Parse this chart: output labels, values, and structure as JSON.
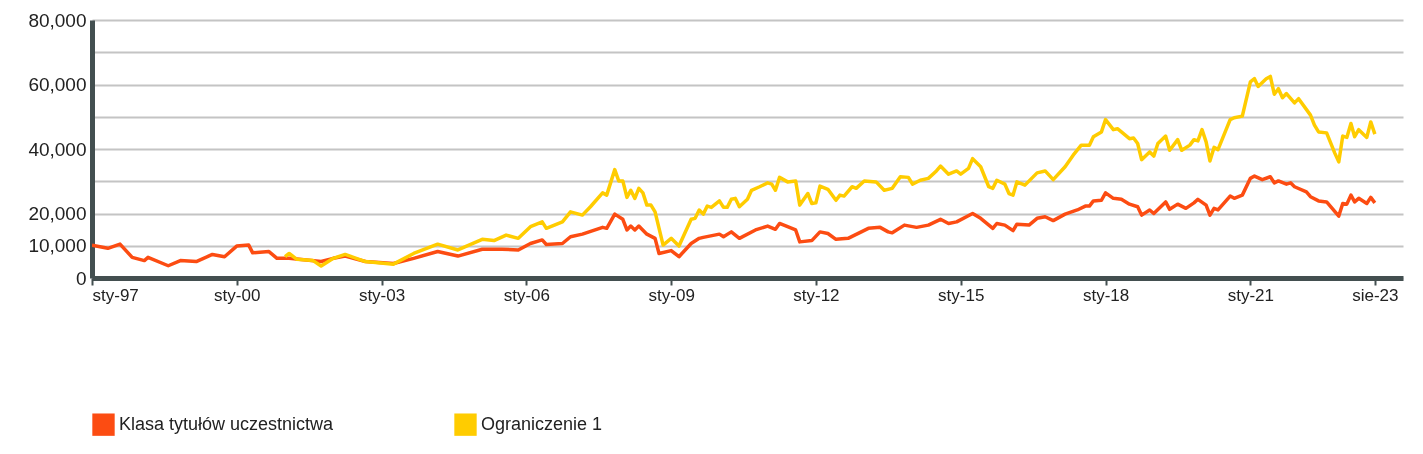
{
  "chart_data": {
    "type": "line",
    "xlim": [
      "1997-01",
      "2024-03"
    ],
    "xticks": [
      {
        "value": "1997-01",
        "label": "sty-97"
      },
      {
        "value": "2000-01",
        "label": "sty-00"
      },
      {
        "value": "2003-01",
        "label": "sty-03"
      },
      {
        "value": "2006-01",
        "label": "sty-06"
      },
      {
        "value": "2009-01",
        "label": "sty-09"
      },
      {
        "value": "2012-01",
        "label": "sty-12"
      },
      {
        "value": "2015-01",
        "label": "sty-15"
      },
      {
        "value": "2018-01",
        "label": "sty-18"
      },
      {
        "value": "2021-01",
        "label": "sty-21"
      },
      {
        "value": "2023-08",
        "label": "sie-23"
      }
    ],
    "ylim": [
      0,
      80000
    ],
    "yticks": [
      {
        "value": 0,
        "label": "0"
      },
      {
        "value": 10000,
        "label": "10,000"
      },
      {
        "value": 20000,
        "label": "20,000"
      },
      {
        "value": 30000,
        "label": null
      },
      {
        "value": 40000,
        "label": "40,000"
      },
      {
        "value": 50000,
        "label": null
      },
      {
        "value": 60000,
        "label": "60,000"
      },
      {
        "value": 70000,
        "label": null
      },
      {
        "value": 80000,
        "label": "80,000"
      }
    ],
    "grid": "y",
    "legend": "bottom",
    "series": [
      {
        "name": "Klasa tytułów uczestnictwa",
        "color": "#fc4c12",
        "x": [
          "1997-01",
          "1997-05",
          "1997-08",
          "1997-11",
          "1998-02",
          "1998-03",
          "1998-08",
          "1998-11",
          "1999-03",
          "1999-07",
          "1999-10",
          "2000-01",
          "2000-04",
          "2000-05",
          "2000-09",
          "2000-11",
          "2001-02",
          "2001-10",
          "2002-01",
          "2002-04",
          "2002-09",
          "2003-04",
          "2003-09",
          "2004-03",
          "2004-08",
          "2005-02",
          "2005-07",
          "2005-11",
          "2006-02",
          "2006-05",
          "2006-06",
          "2006-10",
          "2006-12",
          "2007-03",
          "2007-08",
          "2007-09",
          "2007-11",
          "2008-01",
          "2008-02",
          "2008-03",
          "2008-04",
          "2008-05",
          "2008-07",
          "2008-09",
          "2008-10",
          "2009-01",
          "2009-03",
          "2009-06",
          "2009-08",
          "2009-09",
          "2010-01",
          "2010-02",
          "2010-04",
          "2010-06",
          "2010-10",
          "2011-01",
          "2011-03",
          "2011-04",
          "2011-08",
          "2011-09",
          "2011-12",
          "2012-02",
          "2012-04",
          "2012-06",
          "2012-09",
          "2013-02",
          "2013-05",
          "2013-07",
          "2013-08",
          "2013-11",
          "2014-02",
          "2014-05",
          "2014-08",
          "2014-10",
          "2014-12",
          "2015-04",
          "2015-06",
          "2015-09",
          "2015-10",
          "2015-12",
          "2016-02",
          "2016-03",
          "2016-06",
          "2016-08",
          "2016-10",
          "2016-12",
          "2017-03",
          "2017-06",
          "2017-08",
          "2017-09",
          "2017-10",
          "2017-12",
          "2018-01",
          "2018-03",
          "2018-05",
          "2018-07",
          "2018-09",
          "2018-10",
          "2018-12",
          "2019-01",
          "2019-04",
          "2019-05",
          "2019-07",
          "2019-09",
          "2019-11",
          "2019-12",
          "2020-02",
          "2020-03",
          "2020-04",
          "2020-05",
          "2020-08",
          "2020-09",
          "2020-11",
          "2021-01",
          "2021-02",
          "2021-04",
          "2021-06",
          "2021-07",
          "2021-08",
          "2021-10",
          "2021-11",
          "2021-12",
          "2022-03",
          "2022-04",
          "2022-06",
          "2022-08",
          "2022-11",
          "2022-12",
          "2023-01",
          "2023-02",
          "2023-03",
          "2023-04",
          "2023-06",
          "2023-07",
          "2023-08"
        ],
        "values": [
          10200,
          9200,
          10500,
          6400,
          5400,
          6400,
          3800,
          5400,
          5100,
          7300,
          6600,
          9900,
          10200,
          7800,
          8200,
          6100,
          6100,
          5100,
          6100,
          6800,
          5100,
          4500,
          6100,
          8200,
          6800,
          8900,
          8900,
          8700,
          10700,
          11800,
          10400,
          10700,
          12800,
          13600,
          15700,
          15400,
          19800,
          18200,
          14900,
          16100,
          14900,
          16100,
          13600,
          12300,
          7600,
          8500,
          6600,
          10700,
          12300,
          12600,
          13600,
          12800,
          14300,
          12300,
          14900,
          16100,
          15100,
          16900,
          14900,
          11200,
          11600,
          14300,
          13800,
          12000,
          12300,
          15400,
          15700,
          14300,
          14000,
          16400,
          15700,
          16400,
          18200,
          16900,
          17400,
          20000,
          18500,
          15400,
          16900,
          16400,
          14700,
          16700,
          16400,
          18500,
          19000,
          17800,
          19800,
          21100,
          22300,
          22300,
          23900,
          24100,
          26400,
          24700,
          24400,
          22900,
          22100,
          19500,
          21100,
          20000,
          23600,
          21300,
          22900,
          21600,
          23300,
          24400,
          22600,
          19500,
          21600,
          21100,
          25400,
          24700,
          25700,
          30900,
          31600,
          30500,
          31400,
          29500,
          30100,
          29100,
          29500,
          28300,
          26700,
          25200,
          23900,
          23600,
          19200,
          23100,
          22900,
          25700,
          23600,
          24700,
          23100,
          25000,
          23300
        ]
      },
      {
        "name": "Ograniczenie 1",
        "color": "#ffcc00",
        "x": [
          "2001-01",
          "2001-02",
          "2001-04",
          "2001-08",
          "2001-10",
          "2002-01",
          "2002-04",
          "2002-09",
          "2003-04",
          "2003-09",
          "2004-03",
          "2004-08",
          "2005-02",
          "2005-05",
          "2005-08",
          "2005-11",
          "2006-02",
          "2006-05",
          "2006-06",
          "2006-10",
          "2006-12",
          "2007-03",
          "2007-05",
          "2007-08",
          "2007-09",
          "2007-11",
          "2007-12",
          "2008-01",
          "2008-02",
          "2008-03",
          "2008-04",
          "2008-05",
          "2008-06",
          "2008-07",
          "2008-08",
          "2008-09",
          "2008-11",
          "2009-01",
          "2009-03",
          "2009-06",
          "2009-07",
          "2009-08",
          "2009-09",
          "2009-10",
          "2009-11",
          "2010-01",
          "2010-02",
          "2010-03",
          "2010-04",
          "2010-05",
          "2010-06",
          "2010-08",
          "2010-09",
          "2010-11",
          "2011-01",
          "2011-02",
          "2011-03",
          "2011-04",
          "2011-06",
          "2011-08",
          "2011-09",
          "2011-11",
          "2011-12",
          "2012-01",
          "2012-02",
          "2012-04",
          "2012-06",
          "2012-07",
          "2012-08",
          "2012-10",
          "2012-11",
          "2013-01",
          "2013-04",
          "2013-06",
          "2013-08",
          "2013-10",
          "2013-12",
          "2014-01",
          "2014-03",
          "2014-05",
          "2014-07",
          "2014-08",
          "2014-10",
          "2014-12",
          "2015-01",
          "2015-03",
          "2015-04",
          "2015-06",
          "2015-08",
          "2015-09",
          "2015-10",
          "2015-12",
          "2016-01",
          "2016-02",
          "2016-03",
          "2016-05",
          "2016-08",
          "2016-10",
          "2016-12",
          "2017-03",
          "2017-05",
          "2017-07",
          "2017-09",
          "2017-10",
          "2017-12",
          "2018-01",
          "2018-03",
          "2018-04",
          "2018-05",
          "2018-07",
          "2018-08",
          "2018-09",
          "2018-10",
          "2018-12",
          "2019-01",
          "2019-02",
          "2019-04",
          "2019-05",
          "2019-07",
          "2019-08",
          "2019-10",
          "2019-11",
          "2019-12",
          "2020-01",
          "2020-02",
          "2020-03",
          "2020-04",
          "2020-05",
          "2020-08",
          "2020-09",
          "2020-11",
          "2021-01",
          "2021-02",
          "2021-03",
          "2021-05",
          "2021-06",
          "2021-07",
          "2021-08",
          "2021-09",
          "2021-10",
          "2021-12",
          "2022-01",
          "2022-04",
          "2022-05",
          "2022-06",
          "2022-08",
          "2022-10",
          "2022-11",
          "2022-12",
          "2023-01",
          "2023-02",
          "2023-03",
          "2023-04",
          "2023-06",
          "2023-07",
          "2023-08"
        ],
        "values": [
          6600,
          7600,
          5800,
          5400,
          3700,
          6100,
          7300,
          5100,
          4300,
          7600,
          10500,
          8700,
          12000,
          11600,
          13300,
          12300,
          15900,
          17400,
          15400,
          17400,
          20500,
          19500,
          22100,
          26400,
          25700,
          33600,
          30100,
          30100,
          25000,
          27200,
          24700,
          27800,
          26400,
          22600,
          22600,
          20500,
          10200,
          12300,
          9900,
          18200,
          18500,
          21100,
          19800,
          22300,
          21900,
          23900,
          21900,
          21900,
          24400,
          24700,
          22100,
          24400,
          27200,
          28300,
          29500,
          29100,
          27200,
          31200,
          29800,
          30100,
          22600,
          26200,
          23100,
          23300,
          28500,
          27500,
          24100,
          25700,
          25400,
          28300,
          27800,
          30100,
          29800,
          27200,
          27800,
          31400,
          31200,
          29100,
          30300,
          30900,
          33200,
          34700,
          32200,
          33200,
          32200,
          34000,
          37000,
          34500,
          28300,
          27800,
          30300,
          29100,
          26200,
          25700,
          29800,
          28800,
          32600,
          33200,
          30500,
          34500,
          38100,
          41200,
          41200,
          43800,
          45300,
          49100,
          46000,
          46300,
          45300,
          43200,
          43400,
          41700,
          36700,
          39100,
          37800,
          41700,
          44000,
          39600,
          42900,
          39600,
          41200,
          42900,
          42500,
          46000,
          42200,
          36300,
          40500,
          39800,
          49100,
          49700,
          50200,
          60800,
          61800,
          59400,
          61800,
          62500,
          57000,
          58700,
          55900,
          57200,
          54300,
          55600,
          50500,
          47400,
          45300,
          45000,
          38800,
          36000,
          44000,
          43600,
          47900,
          43800,
          46000,
          43600,
          48400,
          44600
        ]
      }
    ]
  }
}
